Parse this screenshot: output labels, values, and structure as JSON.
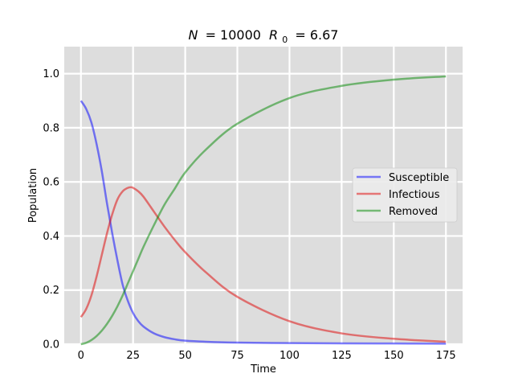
{
  "chart_data": {
    "type": "line",
    "title": {
      "n_symbol": "N",
      "n_value": "= 10000",
      "r_symbol": "R",
      "r_subscript": "0",
      "r_value": "= 6.67"
    },
    "xlabel": "Time",
    "ylabel": "Population",
    "xlim": [
      -8,
      183
    ],
    "ylim": [
      0,
      1.1
    ],
    "xticks": [
      0,
      25,
      50,
      75,
      100,
      125,
      150,
      175
    ],
    "yticks": [
      0.0,
      0.2,
      0.4,
      0.6,
      0.8,
      1.0
    ],
    "ytick_labels": [
      "0.0",
      "0.2",
      "0.4",
      "0.6",
      "0.8",
      "1.0"
    ],
    "grid": true,
    "legend_position": "center-right",
    "background": "#dddddd",
    "series": [
      {
        "name": "Susceptible",
        "color": "#0000ff",
        "x": [
          0,
          2.5,
          5,
          7.5,
          10,
          12.5,
          15,
          17.5,
          20,
          22.5,
          25,
          27.5,
          30,
          35,
          40,
          45,
          50,
          60,
          75,
          100,
          125,
          150,
          175
        ],
        "y": [
          0.9,
          0.87,
          0.82,
          0.74,
          0.64,
          0.52,
          0.41,
          0.31,
          0.22,
          0.16,
          0.115,
          0.085,
          0.065,
          0.04,
          0.026,
          0.018,
          0.013,
          0.009,
          0.006,
          0.004,
          0.003,
          0.0025,
          0.002
        ]
      },
      {
        "name": "Infectious",
        "color": "#e00000",
        "x": [
          0,
          2.5,
          5,
          7.5,
          10,
          12.5,
          15,
          17.5,
          20,
          22.5,
          24,
          25,
          27.5,
          30,
          35,
          40,
          45,
          50,
          60,
          75,
          100,
          125,
          150,
          175
        ],
        "y": [
          0.1,
          0.13,
          0.18,
          0.25,
          0.33,
          0.41,
          0.48,
          0.535,
          0.565,
          0.578,
          0.58,
          0.578,
          0.565,
          0.545,
          0.49,
          0.435,
          0.385,
          0.34,
          0.265,
          0.175,
          0.085,
          0.04,
          0.02,
          0.009
        ]
      },
      {
        "name": "Removed",
        "color": "#008800",
        "x": [
          0,
          2.5,
          5,
          7.5,
          10,
          12.5,
          15,
          17.5,
          20,
          22.5,
          25,
          27.5,
          30,
          35,
          40,
          45,
          50,
          60,
          75,
          100,
          125,
          150,
          175
        ],
        "y": [
          0.0,
          0.005,
          0.015,
          0.03,
          0.05,
          0.075,
          0.105,
          0.14,
          0.18,
          0.225,
          0.27,
          0.315,
          0.36,
          0.44,
          0.515,
          0.575,
          0.635,
          0.72,
          0.815,
          0.91,
          0.955,
          0.978,
          0.99
        ]
      }
    ]
  }
}
